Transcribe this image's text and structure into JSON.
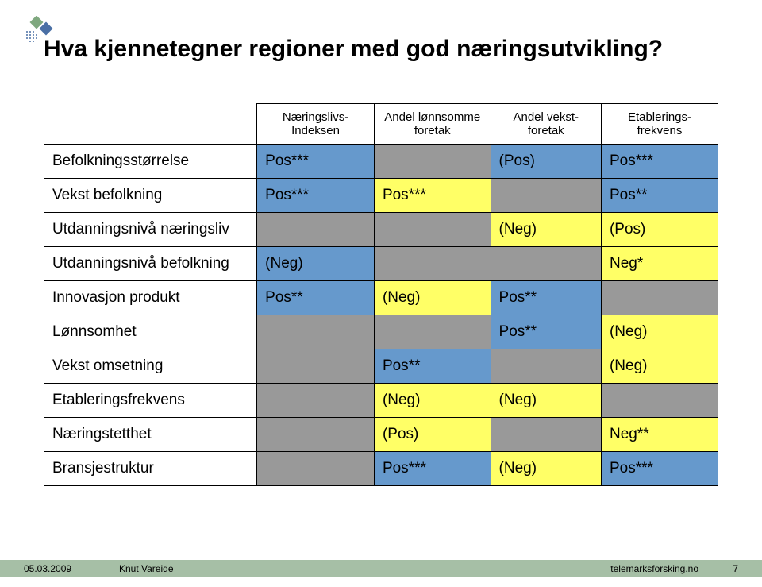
{
  "title": "Hva kjennetegner regioner med god næringsutvikling?",
  "headers": [
    "Næringslivs-\nIndeksen",
    "Andel lønnsomme foretak",
    "Andel vekst-\nforetak",
    "Etablerings-\nfrekvens"
  ],
  "rows": [
    {
      "label": "Befolkningsstørrelse",
      "cells": [
        {
          "v": "Pos***",
          "c": "blue"
        },
        {
          "v": "",
          "c": "gray"
        },
        {
          "v": "(Pos)",
          "c": "blue"
        },
        {
          "v": "Pos***",
          "c": "blue"
        }
      ]
    },
    {
      "label": "Vekst befolkning",
      "cells": [
        {
          "v": "Pos***",
          "c": "blue"
        },
        {
          "v": "Pos***",
          "c": "yellow"
        },
        {
          "v": "",
          "c": "gray"
        },
        {
          "v": "Pos**",
          "c": "blue"
        }
      ]
    },
    {
      "label": "Utdanningsnivå næringsliv",
      "cells": [
        {
          "v": "",
          "c": "gray"
        },
        {
          "v": "",
          "c": "gray"
        },
        {
          "v": "(Neg)",
          "c": "yellow"
        },
        {
          "v": "(Pos)",
          "c": "yellow"
        }
      ]
    },
    {
      "label": "Utdanningsnivå befolkning",
      "cells": [
        {
          "v": "(Neg)",
          "c": "blue"
        },
        {
          "v": "",
          "c": "gray"
        },
        {
          "v": "",
          "c": "gray"
        },
        {
          "v": "Neg*",
          "c": "yellow"
        }
      ]
    },
    {
      "label": "Innovasjon produkt",
      "cells": [
        {
          "v": "Pos**",
          "c": "blue"
        },
        {
          "v": "(Neg)",
          "c": "yellow"
        },
        {
          "v": "Pos**",
          "c": "blue"
        },
        {
          "v": "",
          "c": "gray"
        }
      ]
    },
    {
      "label": "Lønnsomhet",
      "cells": [
        {
          "v": "",
          "c": "gray"
        },
        {
          "v": "",
          "c": "gray"
        },
        {
          "v": "Pos**",
          "c": "blue"
        },
        {
          "v": "(Neg)",
          "c": "yellow"
        }
      ]
    },
    {
      "label": "Vekst omsetning",
      "cells": [
        {
          "v": "",
          "c": "gray"
        },
        {
          "v": "Pos**",
          "c": "blue"
        },
        {
          "v": "",
          "c": "gray"
        },
        {
          "v": "(Neg)",
          "c": "yellow"
        }
      ]
    },
    {
      "label": "Etableringsfrekvens",
      "cells": [
        {
          "v": "",
          "c": "gray"
        },
        {
          "v": "(Neg)",
          "c": "yellow"
        },
        {
          "v": "(Neg)",
          "c": "yellow"
        },
        {
          "v": "",
          "c": "gray"
        }
      ]
    },
    {
      "label": "Næringstetthet",
      "cells": [
        {
          "v": "",
          "c": "gray"
        },
        {
          "v": "(Pos)",
          "c": "yellow"
        },
        {
          "v": "",
          "c": "gray"
        },
        {
          "v": "Neg**",
          "c": "yellow"
        }
      ]
    },
    {
      "label": "Bransjestruktur",
      "cells": [
        {
          "v": "",
          "c": "gray"
        },
        {
          "v": "Pos***",
          "c": "blue"
        },
        {
          "v": "(Neg)",
          "c": "yellow"
        },
        {
          "v": "Pos***",
          "c": "blue"
        }
      ]
    }
  ],
  "footer": {
    "date": "05.03.2009",
    "author": "Knut Vareide",
    "site": "telemarksforsking.no",
    "page": "7"
  }
}
